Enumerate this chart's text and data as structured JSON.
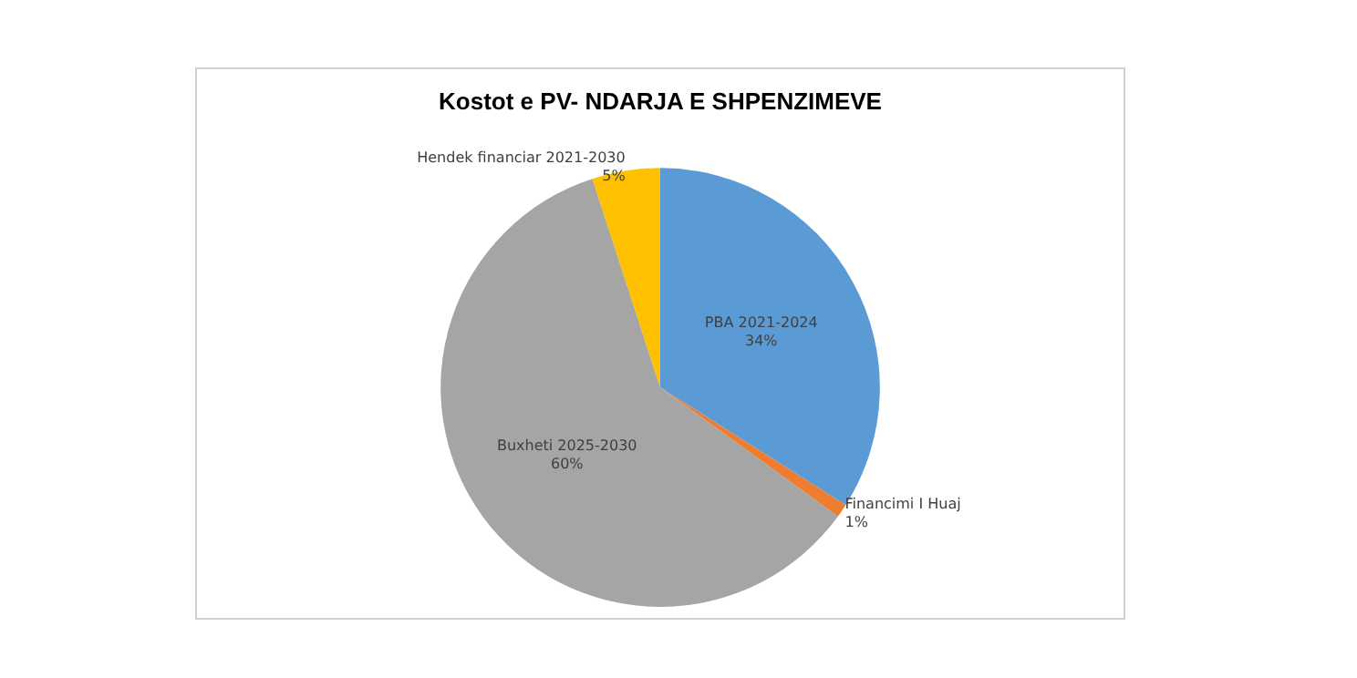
{
  "chart_data": {
    "type": "pie",
    "title": "Kostot e PV- NDARJA E SHPENZIMEVE",
    "categories": [
      "PBA 2021-2024",
      "Financimi I Huaj",
      "Buxheti 2025-2030",
      "Hendek financiar 2021-2030"
    ],
    "values": [
      34,
      1,
      60,
      5
    ],
    "value_labels": [
      "34%",
      "1%",
      "60%",
      "5%"
    ],
    "colors": [
      "#5b9bd5",
      "#ed7d31",
      "#a5a5a5",
      "#ffc000"
    ],
    "legend": false
  }
}
